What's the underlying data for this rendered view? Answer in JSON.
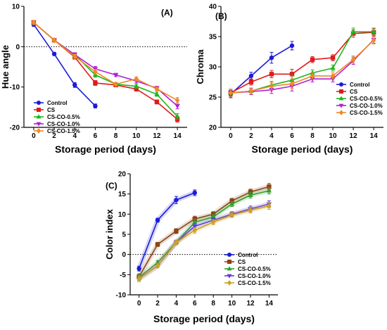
{
  "chart_data": [
    {
      "id": "A",
      "type": "line",
      "panel_label": "(A)",
      "xlabel": "Storage period (days)",
      "ylabel": "Hue angle",
      "x": [
        0,
        2,
        4,
        6,
        8,
        10,
        12,
        14
      ],
      "xticks": [
        0,
        2,
        4,
        6,
        8,
        10,
        12,
        14
      ],
      "ylim": [
        -20,
        10
      ],
      "yticks": [
        -20,
        -10,
        0,
        10
      ],
      "reference_line": 0,
      "legend_position": "middle-left",
      "series": [
        {
          "name": "Control",
          "color": "#1a1adb",
          "marker": "circle",
          "values": [
            5.5,
            -1.8,
            -9.5,
            -14.7,
            null,
            null,
            null,
            null
          ],
          "errors": [
            0.5,
            0.4,
            0.6,
            0.5,
            null,
            null,
            null,
            null
          ]
        },
        {
          "name": "CS",
          "color": "#e01b1b",
          "marker": "square",
          "values": [
            6.0,
            1.6,
            -2.6,
            -9.0,
            -9.5,
            -10.5,
            -13.7,
            -18.0
          ],
          "errors": [
            0.5,
            0.4,
            0.5,
            0.6,
            0.4,
            0.5,
            0.5,
            0.7
          ]
        },
        {
          "name": "CS-CO-0.5%",
          "color": "#1bb81b",
          "marker": "triangle-up",
          "values": [
            6.0,
            1.6,
            -2.0,
            -7.0,
            -9.3,
            -9.8,
            -11.8,
            -17.3
          ],
          "errors": [
            0.5,
            0.4,
            0.5,
            0.6,
            0.4,
            0.5,
            0.5,
            0.7
          ]
        },
        {
          "name": "CS-CO-1.0%",
          "color": "#b020d8",
          "marker": "triangle-down",
          "values": [
            6.0,
            1.6,
            -2.0,
            -5.5,
            -7.0,
            -8.5,
            -10.3,
            -14.7
          ],
          "errors": [
            0.5,
            0.4,
            0.5,
            0.6,
            0.4,
            0.5,
            0.5,
            0.7
          ]
        },
        {
          "name": "CS-CO-1.5%",
          "color": "#f08a20",
          "marker": "diamond",
          "values": [
            6.0,
            1.6,
            -2.4,
            -6.2,
            -9.3,
            -8.0,
            -10.5,
            -13.3
          ],
          "errors": [
            0.5,
            0.4,
            0.5,
            0.6,
            0.4,
            0.5,
            0.5,
            0.7
          ]
        }
      ]
    },
    {
      "id": "B",
      "type": "line",
      "panel_label": "(B)",
      "xlabel": "Storage period (days)",
      "ylabel": "Chroma",
      "x": [
        0,
        2,
        4,
        6,
        8,
        10,
        12,
        14
      ],
      "xticks": [
        0,
        2,
        4,
        6,
        8,
        10,
        12,
        14
      ],
      "ylim": [
        20,
        40
      ],
      "yticks": [
        20,
        25,
        30,
        35,
        40
      ],
      "legend_position": "bottom-right",
      "series": [
        {
          "name": "Control",
          "color": "#1a1adb",
          "marker": "circle",
          "values": [
            25.5,
            28.5,
            31.5,
            33.5,
            null,
            null,
            null,
            null
          ],
          "errors": [
            0.6,
            0.6,
            0.9,
            0.7,
            null,
            null,
            null,
            null
          ]
        },
        {
          "name": "CS",
          "color": "#e01b1b",
          "marker": "square",
          "values": [
            25.7,
            27.5,
            28.8,
            28.8,
            31.2,
            31.5,
            35.5,
            35.7
          ],
          "errors": [
            0.6,
            0.5,
            0.6,
            0.8,
            0.5,
            0.5,
            0.6,
            0.6
          ]
        },
        {
          "name": "CS-CO-0.5%",
          "color": "#1bb81b",
          "marker": "triangle-up",
          "values": [
            25.7,
            26.0,
            27.0,
            27.8,
            29.0,
            29.8,
            35.8,
            35.8
          ],
          "errors": [
            0.6,
            0.5,
            0.6,
            0.8,
            0.5,
            0.5,
            0.6,
            0.6
          ]
        },
        {
          "name": "CS-CO-1.0%",
          "color": "#b020d8",
          "marker": "triangle-down",
          "values": [
            25.7,
            25.9,
            26.2,
            26.8,
            28.0,
            28.0,
            31.0,
            34.5
          ],
          "errors": [
            0.6,
            0.5,
            0.6,
            0.8,
            0.5,
            0.5,
            0.6,
            0.6
          ]
        },
        {
          "name": "CS-CO-1.5%",
          "color": "#f08a20",
          "marker": "diamond",
          "values": [
            25.7,
            26.0,
            26.8,
            27.2,
            28.5,
            28.5,
            31.2,
            34.4
          ],
          "errors": [
            0.6,
            0.5,
            0.6,
            0.8,
            0.5,
            0.5,
            0.6,
            0.6
          ]
        }
      ]
    },
    {
      "id": "C",
      "type": "line",
      "panel_label": "(C)",
      "xlabel": "Storage period (days)",
      "ylabel": "Color index",
      "x": [
        0,
        2,
        4,
        6,
        8,
        10,
        12,
        14
      ],
      "xticks": [
        0,
        2,
        4,
        6,
        8,
        10,
        12,
        14
      ],
      "ylim": [
        -10,
        20
      ],
      "yticks": [
        -10,
        -5,
        0,
        5,
        10,
        15,
        20
      ],
      "reference_line": 0,
      "legend_position": "bottom-right",
      "series": [
        {
          "name": "Control",
          "color": "#1a1adb",
          "marker": "circle",
          "values": [
            -3.5,
            8.5,
            13.5,
            15.3,
            null,
            null,
            null,
            null
          ],
          "errors": [
            0.6,
            0.5,
            0.9,
            0.7,
            null,
            null,
            null,
            null
          ]
        },
        {
          "name": "CS",
          "color": "#8b4513",
          "marker": "square",
          "values": [
            -5.5,
            2.5,
            5.8,
            8.8,
            10.0,
            13.3,
            15.5,
            16.8
          ],
          "errors": [
            0.7,
            0.5,
            0.6,
            0.7,
            0.6,
            0.6,
            0.7,
            0.8
          ]
        },
        {
          "name": "CS-CO-0.5%",
          "color": "#2ea02e",
          "marker": "triangle-up",
          "values": [
            -5.7,
            -2.0,
            3.0,
            8.0,
            9.3,
            12.5,
            14.7,
            15.8
          ],
          "errors": [
            0.7,
            0.5,
            0.6,
            0.7,
            0.6,
            0.6,
            0.7,
            0.8
          ]
        },
        {
          "name": "CS-CO-1.0%",
          "color": "#5a3fd8",
          "marker": "triangle-down",
          "values": [
            -6.0,
            -2.8,
            3.0,
            7.0,
            8.5,
            10.0,
            11.3,
            12.5
          ],
          "errors": [
            0.7,
            0.5,
            0.6,
            0.7,
            0.6,
            0.6,
            0.7,
            0.8
          ]
        },
        {
          "name": "CS-CO-1.5%",
          "color": "#d0a020",
          "marker": "diamond",
          "values": [
            -6.0,
            -2.8,
            3.0,
            6.0,
            8.0,
            9.8,
            11.0,
            12.0
          ],
          "errors": [
            0.7,
            0.5,
            0.6,
            0.7,
            0.6,
            0.6,
            0.7,
            0.8
          ]
        }
      ]
    }
  ]
}
